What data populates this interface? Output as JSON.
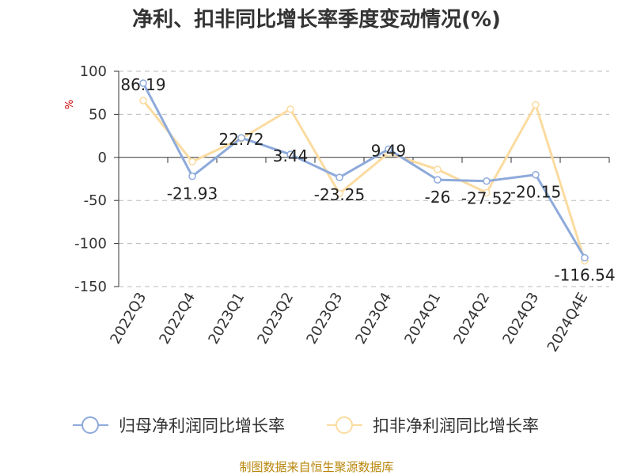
{
  "chart_data": {
    "type": "line",
    "title": "净利、扣非同比增长率季度变动情况(%)",
    "ylabel": "%",
    "categories": [
      "2022Q3",
      "2022Q4",
      "2023Q1",
      "2023Q2",
      "2023Q3",
      "2023Q4",
      "2024Q1",
      "2024Q2",
      "2024Q3",
      "2024Q4E"
    ],
    "ylim": [
      -150,
      100
    ],
    "yticks": [
      100,
      50,
      0,
      -50,
      -100,
      -150
    ],
    "grid": true,
    "legend_position": "bottom",
    "series": [
      {
        "name": "归母净利润同比增长率",
        "color": "#8eaadb",
        "values": [
          86.19,
          -21.93,
          22.72,
          3.44,
          -23.25,
          9.49,
          -26,
          -27.52,
          -20.15,
          -116.54
        ],
        "labels": [
          "86.19",
          "-21.93",
          "22.72",
          "3.44",
          "-23.25",
          "9.49",
          "-26",
          "-27.52",
          "-20.15",
          "-116.54"
        ]
      },
      {
        "name": "扣非净利润同比增长率",
        "color": "#fbdba0",
        "values": [
          66,
          -5,
          22,
          56,
          -42,
          5,
          -14,
          -41,
          61,
          -120
        ]
      }
    ]
  },
  "source_text": "制图数据来自恒生聚源数据库",
  "colors": {
    "unit": "#cc0000",
    "source": "#b8860b",
    "grid": "#bbbbbb",
    "axis": "#333333"
  }
}
